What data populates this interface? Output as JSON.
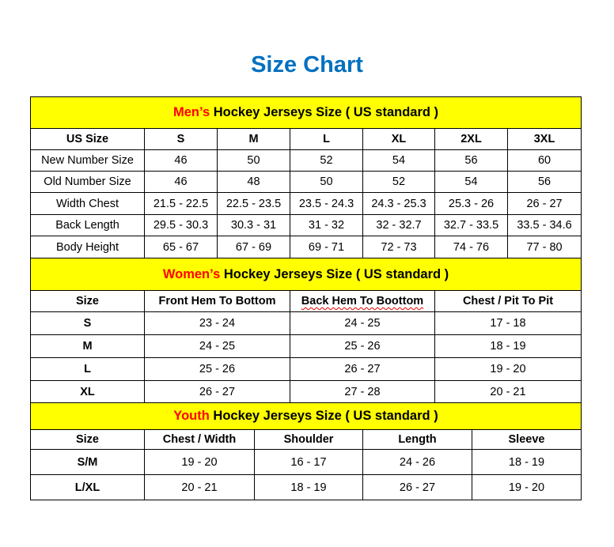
{
  "title": "Size Chart",
  "colors": {
    "title": "#0070C0",
    "header_bg": "#FFFF00",
    "highlight": "#FF0000"
  },
  "men": {
    "heading_highlight": "Men’s",
    "heading_rest": " Hockey Jerseys Size ( US standard )",
    "columns": [
      "US Size",
      "S",
      "M",
      "L",
      "XL",
      "2XL",
      "3XL"
    ],
    "rows": [
      [
        "New Number Size",
        "46",
        "50",
        "52",
        "54",
        "56",
        "60"
      ],
      [
        "Old Number Size",
        "46",
        "48",
        "50",
        "52",
        "54",
        "56"
      ],
      [
        "Width Chest",
        "21.5 - 22.5",
        "22.5 - 23.5",
        "23.5 - 24.3",
        "24.3 - 25.3",
        "25.3 - 26",
        "26 - 27"
      ],
      [
        "Back Length",
        "29.5 - 30.3",
        "30.3 - 31",
        "31 - 32",
        "32 - 32.7",
        "32.7 - 33.5",
        "33.5 - 34.6"
      ],
      [
        "Body Height",
        "65 - 67",
        "67 - 69",
        "69 - 71",
        "72 - 73",
        "74 - 76",
        "77 - 80"
      ]
    ]
  },
  "women": {
    "heading_highlight": "Women’s",
    "heading_rest": " Hockey Jerseys Size ( US standard )",
    "columns": [
      "Size",
      "Front Hem To Bottom",
      "Back Hem To Boottom",
      "Chest / Pit To Pit"
    ],
    "rows": [
      [
        "S",
        "23 - 24",
        "24 - 25",
        "17 - 18"
      ],
      [
        "M",
        "24 - 25",
        "25 - 26",
        "18 - 19"
      ],
      [
        "L",
        "25 - 26",
        "26 - 27",
        "19 - 20"
      ],
      [
        "XL",
        "26 - 27",
        "27 - 28",
        "20 - 21"
      ]
    ]
  },
  "youth": {
    "heading_highlight": "Youth",
    "heading_rest": " Hockey Jerseys Size ( US standard )",
    "columns": [
      "Size",
      "Chest / Width",
      "Shoulder",
      "Length",
      "Sleeve"
    ],
    "rows": [
      [
        "S/M",
        "19 - 20",
        "16 - 17",
        "24 - 26",
        "18 - 19"
      ],
      [
        "L/XL",
        "20 - 21",
        "18 - 19",
        "26 - 27",
        "19 - 20"
      ]
    ]
  }
}
